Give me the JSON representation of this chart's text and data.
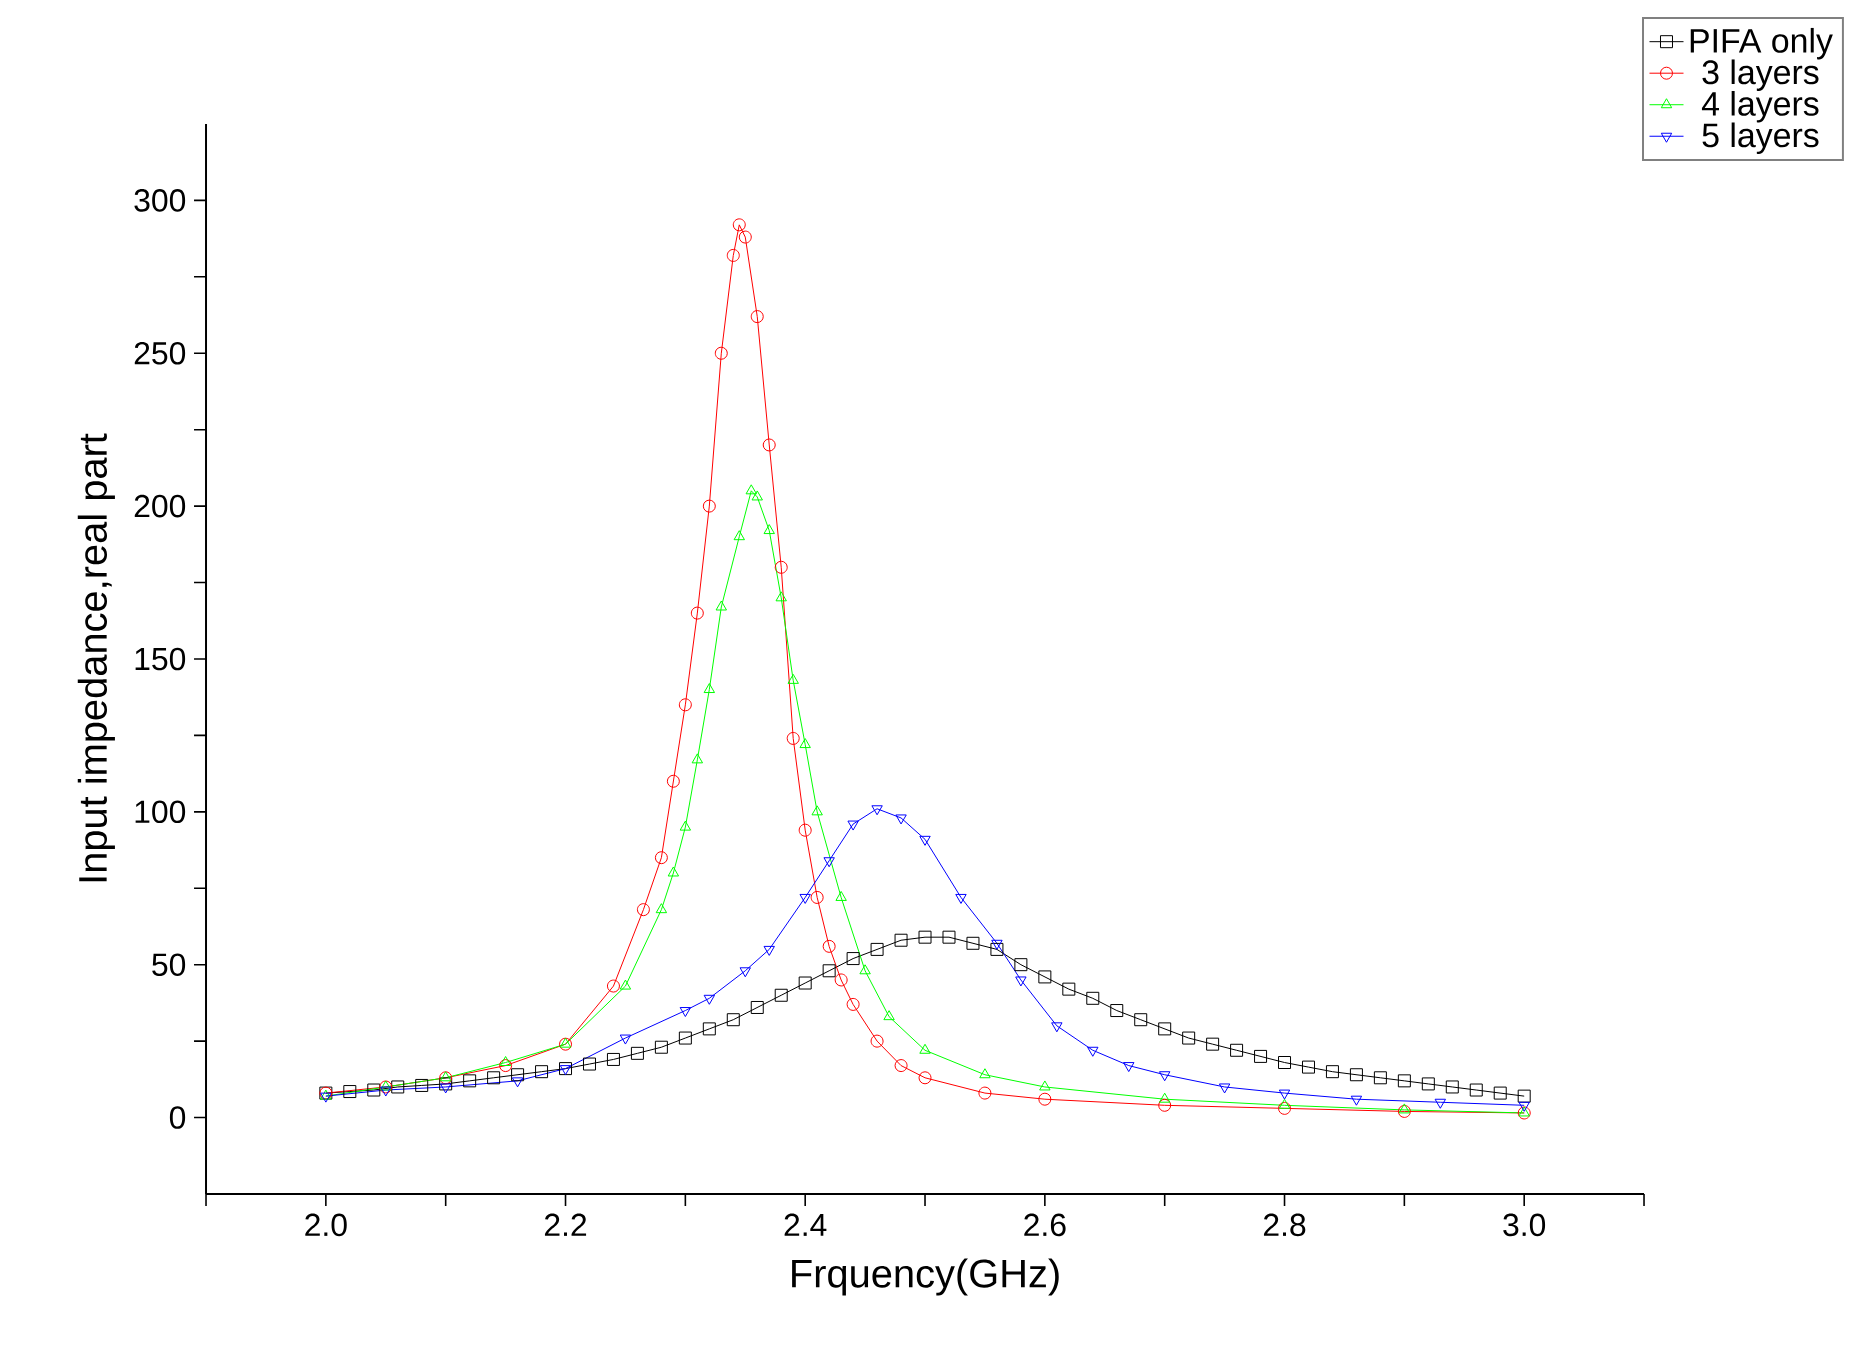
{
  "chart_data": {
    "type": "line",
    "xlabel": "Frquency(GHz)",
    "ylabel": "Input impedance,real part",
    "xlim": [
      1.9,
      3.1
    ],
    "ylim": [
      -25,
      325
    ],
    "xticks": [
      {
        "value": 1.9,
        "label": null
      },
      {
        "value": 2.0,
        "label": "2.0"
      },
      {
        "value": 2.1,
        "label": null
      },
      {
        "value": 2.2,
        "label": "2.2"
      },
      {
        "value": 2.3,
        "label": null
      },
      {
        "value": 2.4,
        "label": "2.4"
      },
      {
        "value": 2.5,
        "label": null
      },
      {
        "value": 2.6,
        "label": "2.6"
      },
      {
        "value": 2.7,
        "label": null
      },
      {
        "value": 2.8,
        "label": "2.8"
      },
      {
        "value": 2.9,
        "label": null
      },
      {
        "value": 3.0,
        "label": "3.0"
      },
      {
        "value": 3.1,
        "label": null
      }
    ],
    "yticks": [
      0,
      {
        "value": 25,
        "label": null
      },
      50,
      {
        "value": 75,
        "label": null
      },
      100,
      {
        "value": 125,
        "label": null
      },
      150,
      {
        "value": 175,
        "label": null
      },
      200,
      {
        "value": 225,
        "label": null
      },
      250,
      {
        "value": 275,
        "label": null
      },
      300
    ],
    "grid": false,
    "legend": "top right",
    "line_style": "solid",
    "series": [
      {
        "name": "PIFA only",
        "color": "#000000",
        "marker": "square",
        "x": [
          2.0,
          2.02,
          2.04,
          2.06,
          2.08,
          2.1,
          2.12,
          2.14,
          2.16,
          2.18,
          2.2,
          2.22,
          2.24,
          2.26,
          2.28,
          2.3,
          2.32,
          2.34,
          2.36,
          2.38,
          2.4,
          2.42,
          2.44,
          2.46,
          2.48,
          2.5,
          2.52,
          2.54,
          2.56,
          2.58,
          2.6,
          2.62,
          2.64,
          2.66,
          2.68,
          2.7,
          2.72,
          2.74,
          2.76,
          2.78,
          2.8,
          2.82,
          2.84,
          2.86,
          2.88,
          2.9,
          2.92,
          2.94,
          2.96,
          2.98,
          3.0
        ],
        "values": [
          8,
          8.5,
          9,
          10,
          10.5,
          11,
          12,
          13,
          14,
          15,
          16,
          17.5,
          19,
          21,
          23,
          26,
          29,
          32,
          36,
          40,
          44,
          48,
          52,
          55,
          58,
          59,
          59,
          57,
          55,
          50,
          46,
          42,
          39,
          35,
          32,
          29,
          26,
          24,
          22,
          20,
          18,
          16.5,
          15,
          14,
          13,
          12,
          11,
          10,
          9,
          8,
          7
        ]
      },
      {
        "name": "3 layers",
        "color": "#ff0000",
        "marker": "circle",
        "x": [
          2.0,
          2.05,
          2.1,
          2.15,
          2.2,
          2.24,
          2.265,
          2.28,
          2.29,
          2.3,
          2.31,
          2.32,
          2.33,
          2.34,
          2.345,
          2.35,
          2.36,
          2.37,
          2.38,
          2.39,
          2.4,
          2.41,
          2.42,
          2.43,
          2.44,
          2.46,
          2.48,
          2.5,
          2.55,
          2.6,
          2.7,
          2.8,
          2.9,
          3.0
        ],
        "values": [
          8,
          10,
          13,
          17,
          24,
          43,
          68,
          85,
          110,
          135,
          165,
          200,
          250,
          282,
          292,
          288,
          262,
          220,
          180,
          124,
          94,
          72,
          56,
          45,
          37,
          25,
          17,
          13,
          8,
          6,
          4,
          3,
          2,
          1.5
        ]
      },
      {
        "name": "4 layers",
        "color": "#00ff00",
        "marker": "triangle",
        "x": [
          2.0,
          2.05,
          2.1,
          2.15,
          2.2,
          2.25,
          2.28,
          2.29,
          2.3,
          2.31,
          2.32,
          2.33,
          2.345,
          2.355,
          2.36,
          2.37,
          2.38,
          2.39,
          2.4,
          2.41,
          2.43,
          2.45,
          2.47,
          2.5,
          2.55,
          2.6,
          2.7,
          2.8,
          2.9,
          3.0
        ],
        "values": [
          7,
          10,
          13,
          18,
          24,
          43,
          68,
          80,
          95,
          117,
          140,
          167,
          190,
          205,
          203,
          192,
          170,
          143,
          122,
          100,
          72,
          48,
          33,
          22,
          14,
          10,
          6,
          4,
          2.5,
          1.5
        ]
      },
      {
        "name": "5 layers",
        "color": "#0000ff",
        "marker": "triangle_down",
        "x": [
          2.0,
          2.05,
          2.1,
          2.16,
          2.2,
          2.25,
          2.3,
          2.32,
          2.35,
          2.37,
          2.4,
          2.42,
          2.44,
          2.46,
          2.48,
          2.5,
          2.53,
          2.56,
          2.58,
          2.61,
          2.64,
          2.67,
          2.7,
          2.75,
          2.8,
          2.86,
          2.93,
          3.0
        ],
        "values": [
          7,
          9,
          10,
          12,
          16,
          26,
          35,
          39,
          48,
          55,
          72,
          84,
          96,
          101,
          98,
          91,
          72,
          57,
          45,
          30,
          22,
          17,
          14,
          10,
          8,
          6,
          5,
          4
        ]
      }
    ]
  }
}
